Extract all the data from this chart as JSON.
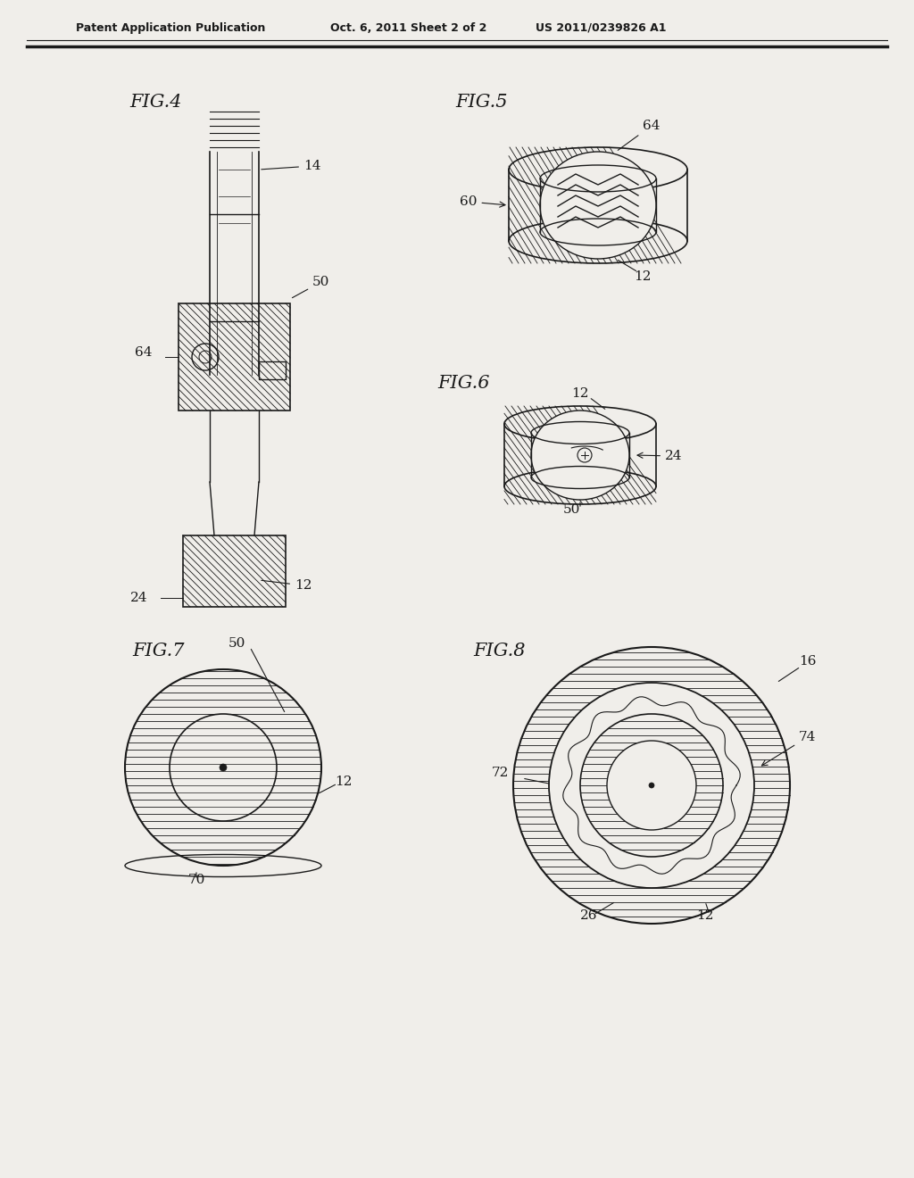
{
  "bg_color": "#f0eeea",
  "line_color": "#1a1a1a",
  "hatch_color": "#333333",
  "header_text": "Patent Application Publication",
  "header_date": "Oct. 6, 2011",
  "header_sheet": "Sheet 2 of 2",
  "header_patent": "US 2011/0239826 A1",
  "fig4_label": "FIG.4",
  "fig5_label": "FIG.5",
  "fig6_label": "FIG.6",
  "fig7_label": "FIG.7",
  "fig8_label": "FIG.8"
}
